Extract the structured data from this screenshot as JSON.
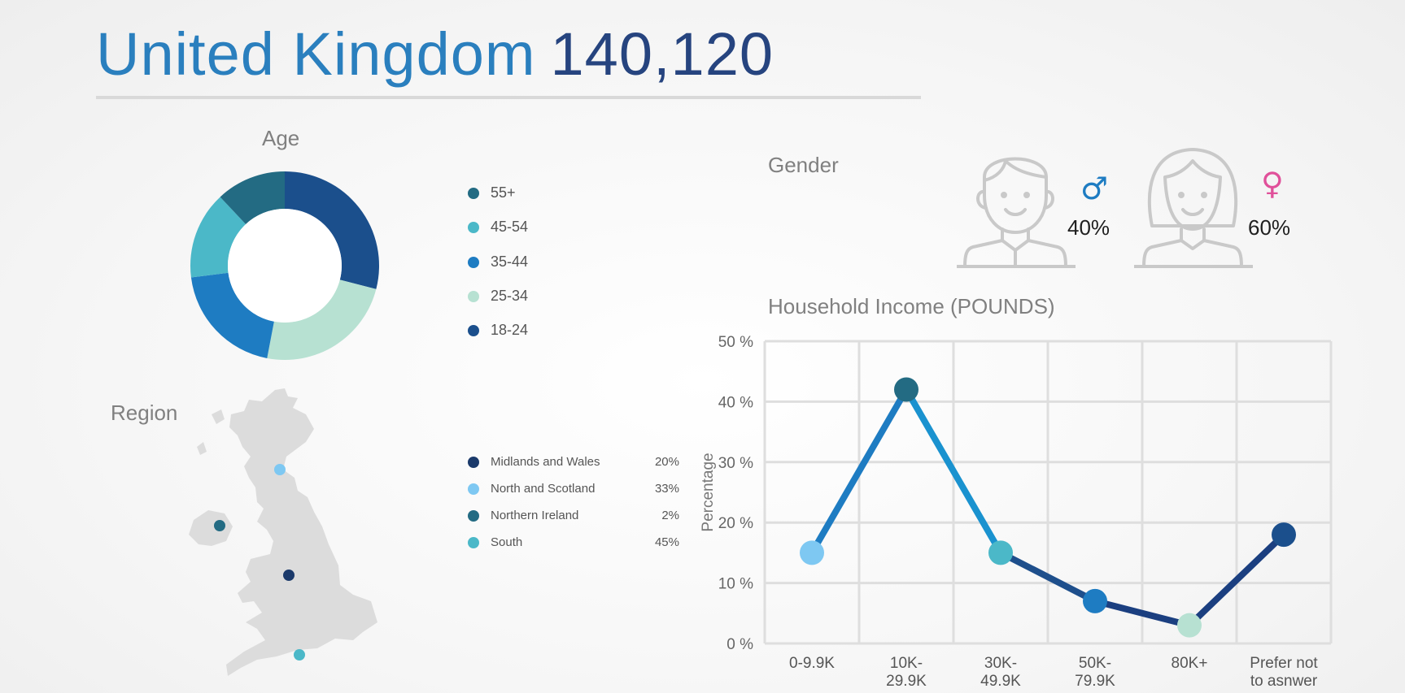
{
  "header": {
    "title_text": "United Kingdom",
    "title_number": "140,120"
  },
  "age": {
    "title": "Age",
    "legend": [
      {
        "label": "55+",
        "color": "#236b83"
      },
      {
        "label": "45-54",
        "color": "#4bb8c8"
      },
      {
        "label": "35-44",
        "color": "#1e7cc2"
      },
      {
        "label": "25-34",
        "color": "#b7e1d2"
      },
      {
        "label": "18-24",
        "color": "#1b4f8c"
      }
    ]
  },
  "gender": {
    "title": "Gender",
    "male": {
      "symbol": "♂",
      "percent": "40%",
      "color": "#1e7cc2"
    },
    "female": {
      "symbol": "♀",
      "percent": "60%",
      "color": "#e0509a"
    }
  },
  "region": {
    "title": "Region",
    "legend": [
      {
        "label": "Midlands and Wales",
        "percent": "20%",
        "color": "#1b3a6b"
      },
      {
        "label": "North and Scotland",
        "percent": "33%",
        "color": "#7ec8f2"
      },
      {
        "label": "Northern Ireland",
        "percent": "2%",
        "color": "#236b83"
      },
      {
        "label": "South",
        "percent": "45%",
        "color": "#4bb8c8"
      }
    ]
  },
  "chart_data": [
    {
      "type": "pie",
      "title": "Age",
      "categories": [
        "18-24",
        "25-34",
        "35-44",
        "45-54",
        "55+"
      ],
      "values": [
        29,
        24,
        20,
        15,
        12
      ],
      "colors": [
        "#1b4f8c",
        "#b7e1d2",
        "#1e7cc2",
        "#4bb8c8",
        "#236b83"
      ],
      "style": "donut"
    },
    {
      "type": "line",
      "title": "Household Income (POUNDS)",
      "ylabel": "Percentage",
      "xlabel": "",
      "categories": [
        "0-9.9K",
        "10K-29.9K",
        "30K-49.9K",
        "50K-79.9K",
        "80K+",
        "Prefer not to asnwer"
      ],
      "category_lines": [
        [
          "0-9.9K"
        ],
        [
          "10K-",
          "29.9K"
        ],
        [
          "30K-",
          "49.9K"
        ],
        [
          "50K-",
          "79.9K"
        ],
        [
          "80K+"
        ],
        [
          "Prefer not",
          "to asnwer"
        ]
      ],
      "values": [
        15,
        42,
        15,
        7,
        3,
        18
      ],
      "point_colors": [
        "#7ec8f2",
        "#236b83",
        "#4bb8c8",
        "#1e7cc2",
        "#b7e1d2",
        "#1b4f8c"
      ],
      "ylim": [
        0,
        50
      ],
      "yticks": [
        0,
        10,
        20,
        30,
        40,
        50
      ],
      "ytick_labels": [
        "0 %",
        "10 %",
        "20 %",
        "30 %",
        "40 %",
        "50 %"
      ],
      "grid": true
    }
  ]
}
